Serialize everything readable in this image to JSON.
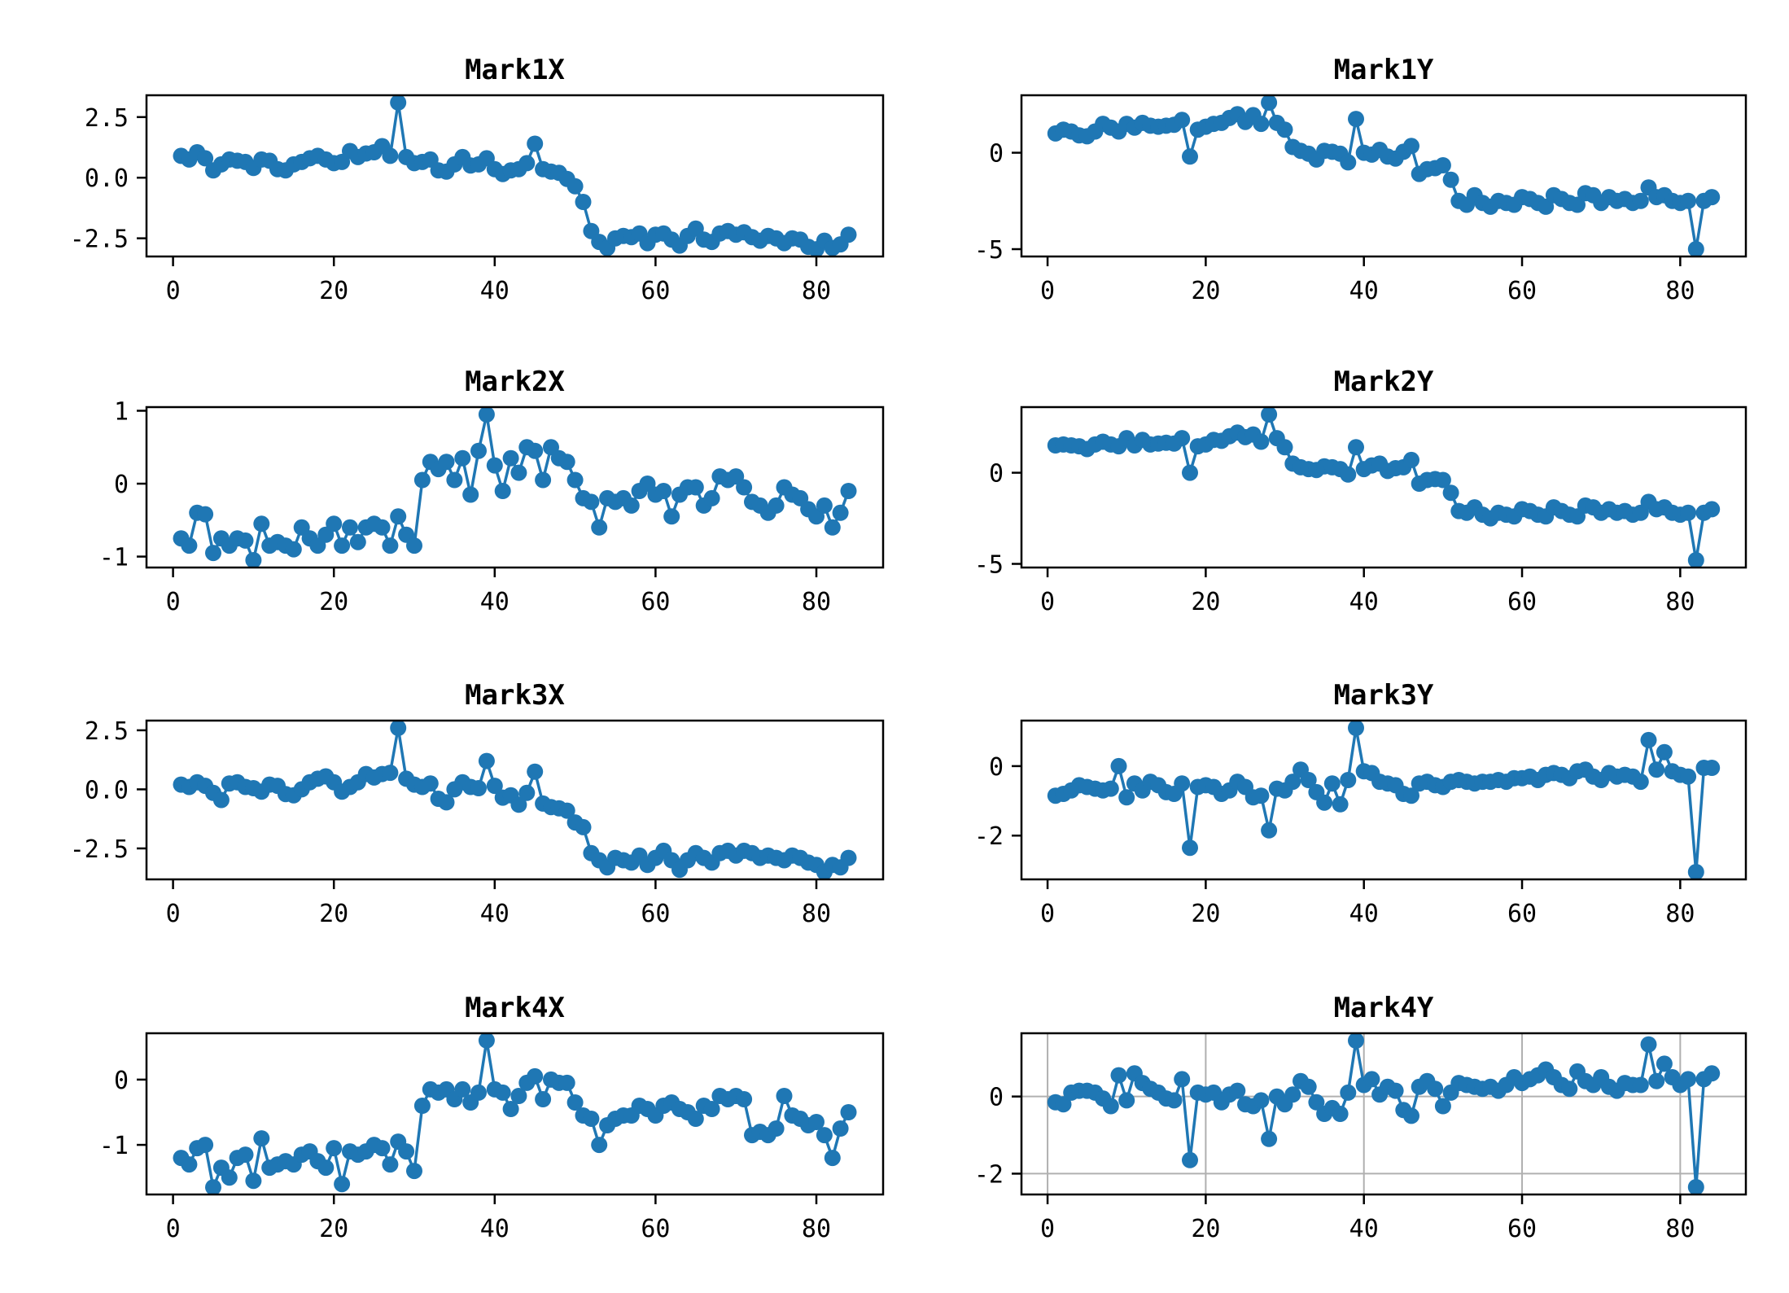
{
  "figure": {
    "background": "#ffffff",
    "accent_color": "#1f77b4",
    "grid_color": "#b0b0b0",
    "frame_color": "#000000"
  },
  "chart_data": [
    {
      "type": "line",
      "title": "Mark1X",
      "marker": "circle",
      "color": "#1f77b4",
      "xlabel": "",
      "ylabel": "",
      "legend": null,
      "grid": false,
      "x_start": 1,
      "xlim": [
        -3.3,
        88.3
      ],
      "ylim": [
        -3.25,
        3.4
      ],
      "xticks": [
        0,
        20,
        40,
        60,
        80
      ],
      "xtick_labels": [
        "0",
        "20",
        "40",
        "60",
        "80"
      ],
      "yticks": [
        2.5,
        0.0,
        -2.5
      ],
      "ytick_labels": [
        "2.5",
        "0.0",
        "-2.5"
      ],
      "values": [
        0.9,
        0.75,
        1.05,
        0.8,
        0.3,
        0.55,
        0.75,
        0.7,
        0.65,
        0.4,
        0.75,
        0.7,
        0.35,
        0.3,
        0.55,
        0.65,
        0.8,
        0.9,
        0.75,
        0.6,
        0.65,
        1.1,
        0.85,
        1.0,
        1.05,
        1.3,
        0.9,
        3.1,
        0.85,
        0.6,
        0.65,
        0.75,
        0.3,
        0.25,
        0.55,
        0.85,
        0.5,
        0.55,
        0.8,
        0.35,
        0.15,
        0.3,
        0.35,
        0.6,
        1.4,
        0.35,
        0.25,
        0.2,
        -0.05,
        -0.35,
        -1.0,
        -2.2,
        -2.65,
        -2.9,
        -2.5,
        -2.4,
        -2.45,
        -2.3,
        -2.7,
        -2.35,
        -2.3,
        -2.55,
        -2.8,
        -2.4,
        -2.1,
        -2.55,
        -2.65,
        -2.3,
        -2.2,
        -2.35,
        -2.25,
        -2.45,
        -2.6,
        -2.4,
        -2.5,
        -2.7,
        -2.5,
        -2.55,
        -2.85,
        -2.95,
        -2.6,
        -2.9,
        -2.75,
        -2.35
      ]
    },
    {
      "type": "line",
      "title": "Mark1Y",
      "marker": "circle",
      "color": "#1f77b4",
      "xlabel": "",
      "ylabel": "",
      "legend": null,
      "grid": false,
      "x_start": 1,
      "xlim": [
        -3.3,
        88.3
      ],
      "ylim": [
        -5.38,
        2.98
      ],
      "xticks": [
        0,
        20,
        40,
        60,
        80
      ],
      "xtick_labels": [
        "0",
        "20",
        "40",
        "60",
        "80"
      ],
      "yticks": [
        0,
        -5
      ],
      "ytick_labels": [
        "0",
        "-5"
      ],
      "values": [
        1.0,
        1.2,
        1.1,
        0.9,
        0.85,
        1.1,
        1.5,
        1.3,
        1.1,
        1.5,
        1.3,
        1.55,
        1.4,
        1.35,
        1.4,
        1.45,
        1.7,
        -0.2,
        1.2,
        1.35,
        1.5,
        1.55,
        1.8,
        2.0,
        1.6,
        1.95,
        1.5,
        2.6,
        1.55,
        1.2,
        0.3,
        0.1,
        -0.05,
        -0.35,
        0.1,
        0.05,
        -0.05,
        -0.5,
        1.75,
        0.0,
        -0.1,
        0.15,
        -0.2,
        -0.3,
        0.05,
        0.35,
        -1.1,
        -0.85,
        -0.8,
        -0.65,
        -1.4,
        -2.5,
        -2.7,
        -2.2,
        -2.6,
        -2.8,
        -2.5,
        -2.6,
        -2.7,
        -2.3,
        -2.4,
        -2.6,
        -2.8,
        -2.2,
        -2.4,
        -2.6,
        -2.7,
        -2.1,
        -2.2,
        -2.6,
        -2.3,
        -2.5,
        -2.4,
        -2.6,
        -2.5,
        -1.8,
        -2.3,
        -2.2,
        -2.5,
        -2.6,
        -2.5,
        -5.0,
        -2.5,
        -2.3
      ]
    },
    {
      "type": "line",
      "title": "Mark2X",
      "marker": "circle",
      "color": "#1f77b4",
      "xlabel": "",
      "ylabel": "",
      "legend": null,
      "grid": false,
      "x_start": 1,
      "xlim": [
        -3.3,
        88.3
      ],
      "ylim": [
        -1.15,
        1.05
      ],
      "xticks": [
        0,
        20,
        40,
        60,
        80
      ],
      "xtick_labels": [
        "0",
        "20",
        "40",
        "60",
        "80"
      ],
      "yticks": [
        1,
        0,
        -1
      ],
      "ytick_labels": [
        "1",
        "0",
        "-1"
      ],
      "values": [
        -0.75,
        -0.85,
        -0.4,
        -0.42,
        -0.95,
        -0.75,
        -0.85,
        -0.75,
        -0.78,
        -1.05,
        -0.55,
        -0.85,
        -0.8,
        -0.85,
        -0.9,
        -0.6,
        -0.75,
        -0.85,
        -0.7,
        -0.55,
        -0.85,
        -0.6,
        -0.8,
        -0.6,
        -0.55,
        -0.6,
        -0.85,
        -0.45,
        -0.7,
        -0.85,
        0.05,
        0.3,
        0.2,
        0.3,
        0.05,
        0.35,
        -0.15,
        0.45,
        0.95,
        0.25,
        -0.1,
        0.35,
        0.15,
        0.5,
        0.45,
        0.05,
        0.5,
        0.35,
        0.3,
        0.05,
        -0.2,
        -0.25,
        -0.6,
        -0.2,
        -0.25,
        -0.2,
        -0.3,
        -0.1,
        0.0,
        -0.15,
        -0.1,
        -0.45,
        -0.15,
        -0.05,
        -0.05,
        -0.3,
        -0.2,
        0.1,
        0.05,
        0.1,
        -0.05,
        -0.25,
        -0.3,
        -0.4,
        -0.3,
        -0.05,
        -0.15,
        -0.2,
        -0.35,
        -0.45,
        -0.3,
        -0.6,
        -0.4,
        -0.1
      ]
    },
    {
      "type": "line",
      "title": "Mark2Y",
      "marker": "circle",
      "color": "#1f77b4",
      "xlabel": "",
      "ylabel": "",
      "legend": null,
      "grid": false,
      "x_start": 1,
      "xlim": [
        -3.3,
        88.3
      ],
      "ylim": [
        -5.2,
        3.6
      ],
      "xticks": [
        0,
        20,
        40,
        60,
        80
      ],
      "xtick_labels": [
        "0",
        "20",
        "40",
        "60",
        "80"
      ],
      "yticks": [
        0,
        -5
      ],
      "ytick_labels": [
        "0",
        "-5"
      ],
      "values": [
        1.5,
        1.55,
        1.5,
        1.45,
        1.3,
        1.55,
        1.7,
        1.55,
        1.45,
        1.9,
        1.5,
        1.8,
        1.55,
        1.6,
        1.65,
        1.6,
        1.9,
        0.0,
        1.45,
        1.55,
        1.8,
        1.75,
        2.0,
        2.2,
        1.95,
        2.1,
        1.7,
        3.2,
        1.9,
        1.4,
        0.5,
        0.3,
        0.2,
        0.15,
        0.35,
        0.3,
        0.2,
        -0.1,
        1.4,
        0.2,
        0.4,
        0.5,
        0.1,
        0.25,
        0.3,
        0.7,
        -0.6,
        -0.4,
        -0.35,
        -0.4,
        -1.1,
        -2.1,
        -2.2,
        -1.9,
        -2.3,
        -2.5,
        -2.2,
        -2.3,
        -2.4,
        -2.0,
        -2.1,
        -2.3,
        -2.4,
        -1.9,
        -2.1,
        -2.3,
        -2.4,
        -1.8,
        -1.9,
        -2.2,
        -2.0,
        -2.2,
        -2.1,
        -2.3,
        -2.2,
        -1.6,
        -2.0,
        -1.9,
        -2.2,
        -2.3,
        -2.2,
        -4.8,
        -2.2,
        -2.0
      ]
    },
    {
      "type": "line",
      "title": "Mark3X",
      "marker": "circle",
      "color": "#1f77b4",
      "xlabel": "",
      "ylabel": "",
      "legend": null,
      "grid": false,
      "x_start": 1,
      "xlim": [
        -3.3,
        88.3
      ],
      "ylim": [
        -3.81,
        2.91
      ],
      "xticks": [
        0,
        20,
        40,
        60,
        80
      ],
      "xtick_labels": [
        "0",
        "20",
        "40",
        "60",
        "80"
      ],
      "yticks": [
        2.5,
        0.0,
        -2.5
      ],
      "ytick_labels": [
        "2.5",
        "0.0",
        "-2.5"
      ],
      "values": [
        0.2,
        0.1,
        0.3,
        0.15,
        -0.15,
        -0.45,
        0.25,
        0.3,
        0.1,
        0.05,
        -0.1,
        0.2,
        0.15,
        -0.2,
        -0.25,
        0.0,
        0.3,
        0.45,
        0.55,
        0.3,
        -0.1,
        0.1,
        0.3,
        0.65,
        0.5,
        0.65,
        0.7,
        2.6,
        0.45,
        0.2,
        0.1,
        0.25,
        -0.4,
        -0.55,
        0.0,
        0.3,
        0.1,
        0.05,
        1.2,
        0.15,
        -0.35,
        -0.25,
        -0.65,
        -0.15,
        0.75,
        -0.6,
        -0.75,
        -0.8,
        -0.9,
        -1.4,
        -1.6,
        -2.7,
        -3.0,
        -3.3,
        -2.9,
        -3.0,
        -3.1,
        -2.8,
        -3.2,
        -2.9,
        -2.6,
        -3.0,
        -3.4,
        -3.0,
        -2.7,
        -2.9,
        -3.1,
        -2.7,
        -2.6,
        -2.8,
        -2.6,
        -2.7,
        -2.9,
        -2.8,
        -2.9,
        -3.0,
        -2.8,
        -2.9,
        -3.1,
        -3.2,
        -3.5,
        -3.2,
        -3.3,
        -2.9
      ]
    },
    {
      "type": "line",
      "title": "Mark3Y",
      "marker": "circle",
      "color": "#1f77b4",
      "xlabel": "",
      "ylabel": "",
      "legend": null,
      "grid": false,
      "x_start": 1,
      "xlim": [
        -3.3,
        88.3
      ],
      "ylim": [
        -3.26,
        1.31
      ],
      "xticks": [
        0,
        20,
        40,
        60,
        80
      ],
      "xtick_labels": [
        "0",
        "20",
        "40",
        "60",
        "80"
      ],
      "yticks": [
        0,
        -2
      ],
      "ytick_labels": [
        "0",
        "-2"
      ],
      "values": [
        -0.85,
        -0.8,
        -0.7,
        -0.55,
        -0.6,
        -0.65,
        -0.7,
        -0.65,
        0.0,
        -0.9,
        -0.5,
        -0.7,
        -0.45,
        -0.55,
        -0.75,
        -0.8,
        -0.5,
        -2.35,
        -0.6,
        -0.55,
        -0.6,
        -0.8,
        -0.7,
        -0.45,
        -0.6,
        -0.9,
        -0.85,
        -1.85,
        -0.65,
        -0.7,
        -0.45,
        -0.1,
        -0.4,
        -0.75,
        -1.05,
        -0.5,
        -1.1,
        -0.4,
        1.1,
        -0.15,
        -0.2,
        -0.45,
        -0.5,
        -0.55,
        -0.8,
        -0.85,
        -0.5,
        -0.45,
        -0.55,
        -0.6,
        -0.45,
        -0.4,
        -0.45,
        -0.5,
        -0.45,
        -0.45,
        -0.4,
        -0.45,
        -0.35,
        -0.35,
        -0.3,
        -0.4,
        -0.25,
        -0.2,
        -0.25,
        -0.35,
        -0.15,
        -0.1,
        -0.3,
        -0.4,
        -0.2,
        -0.3,
        -0.25,
        -0.3,
        -0.45,
        0.75,
        -0.1,
        0.4,
        -0.15,
        -0.25,
        -0.3,
        -3.05,
        -0.05,
        -0.05
      ]
    },
    {
      "type": "line",
      "title": "Mark4X",
      "marker": "circle",
      "color": "#1f77b4",
      "xlabel": "",
      "ylabel": "",
      "legend": null,
      "grid": false,
      "x_start": 1,
      "xlim": [
        -3.3,
        88.3
      ],
      "ylim": [
        -1.76,
        0.71
      ],
      "xticks": [
        0,
        20,
        40,
        60,
        80
      ],
      "xtick_labels": [
        "0",
        "20",
        "40",
        "60",
        "80"
      ],
      "yticks": [
        0,
        -1
      ],
      "ytick_labels": [
        "0",
        "-1"
      ],
      "values": [
        -1.2,
        -1.3,
        -1.05,
        -1.0,
        -1.65,
        -1.35,
        -1.5,
        -1.2,
        -1.15,
        -1.55,
        -0.9,
        -1.35,
        -1.3,
        -1.25,
        -1.3,
        -1.15,
        -1.1,
        -1.25,
        -1.35,
        -1.05,
        -1.6,
        -1.1,
        -1.15,
        -1.1,
        -1.0,
        -1.05,
        -1.3,
        -0.95,
        -1.1,
        -1.4,
        -0.4,
        -0.15,
        -0.2,
        -0.15,
        -0.3,
        -0.15,
        -0.35,
        -0.2,
        0.6,
        -0.15,
        -0.2,
        -0.45,
        -0.25,
        -0.05,
        0.05,
        -0.3,
        0.0,
        -0.05,
        -0.05,
        -0.35,
        -0.55,
        -0.6,
        -1.0,
        -0.7,
        -0.6,
        -0.55,
        -0.55,
        -0.4,
        -0.45,
        -0.55,
        -0.4,
        -0.35,
        -0.45,
        -0.5,
        -0.6,
        -0.4,
        -0.45,
        -0.25,
        -0.3,
        -0.25,
        -0.3,
        -0.85,
        -0.8,
        -0.85,
        -0.75,
        -0.25,
        -0.55,
        -0.6,
        -0.7,
        -0.65,
        -0.85,
        -1.2,
        -0.75,
        -0.5
      ]
    },
    {
      "type": "line",
      "title": "Mark4Y",
      "marker": "circle",
      "color": "#1f77b4",
      "xlabel": "",
      "ylabel": "",
      "legend": null,
      "grid": true,
      "x_start": 1,
      "xlim": [
        -3.3,
        88.3
      ],
      "ylim": [
        -2.54,
        1.64
      ],
      "xticks": [
        0,
        20,
        40,
        60,
        80
      ],
      "xtick_labels": [
        "0",
        "20",
        "40",
        "60",
        "80"
      ],
      "yticks": [
        0,
        -2
      ],
      "ytick_labels": [
        "0",
        "-2"
      ],
      "values": [
        -0.15,
        -0.2,
        0.1,
        0.15,
        0.15,
        0.1,
        -0.05,
        -0.25,
        0.55,
        -0.1,
        0.6,
        0.35,
        0.2,
        0.1,
        -0.05,
        -0.1,
        0.45,
        -1.65,
        0.1,
        0.05,
        0.1,
        -0.15,
        0.05,
        0.15,
        -0.2,
        -0.25,
        -0.1,
        -1.1,
        0.0,
        -0.2,
        0.05,
        0.4,
        0.25,
        -0.15,
        -0.45,
        -0.3,
        -0.45,
        0.1,
        1.45,
        0.3,
        0.45,
        0.05,
        0.25,
        0.15,
        -0.35,
        -0.5,
        0.25,
        0.4,
        0.2,
        -0.25,
        0.1,
        0.35,
        0.3,
        0.25,
        0.2,
        0.25,
        0.15,
        0.3,
        0.5,
        0.35,
        0.45,
        0.55,
        0.7,
        0.5,
        0.3,
        0.2,
        0.65,
        0.4,
        0.3,
        0.5,
        0.25,
        0.15,
        0.35,
        0.3,
        0.3,
        1.35,
        0.4,
        0.85,
        0.5,
        0.3,
        0.45,
        -2.35,
        0.45,
        0.6
      ]
    }
  ]
}
